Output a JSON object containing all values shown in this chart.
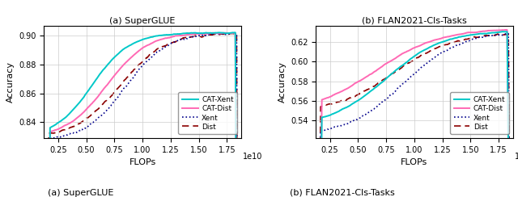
{
  "plot1": {
    "title": "(a) SuperGLUE",
    "ylabel": "Accuracy",
    "xlabel": "FLOPs",
    "xlim": [
      1250000000.0,
      18750000000.0
    ],
    "ylim": [
      0.829,
      0.907
    ],
    "yticks": [
      0.84,
      0.86,
      0.88,
      0.9
    ],
    "xticks": [
      2500000000.0,
      5000000000.0,
      7500000000.0,
      10000000000.0,
      12500000000.0,
      15000000000.0,
      17500000000.0
    ],
    "xticklabels": [
      "0.25",
      "0.50",
      "0.75",
      "1.00",
      "1.25",
      "1.50",
      "1.75"
    ],
    "cat_xent_color": "#00C8C8",
    "cat_dist_color": "#FF69B4",
    "xent_color": "#00008B",
    "dist_color": "#8B0000"
  },
  "plot2": {
    "title": "(b) FLAN2021-Cls-Tasks",
    "ylabel": "Accuracy",
    "xlabel": "FLOPs",
    "xlim": [
      1250000000.0,
      18750000000.0
    ],
    "ylim": [
      0.522,
      0.637
    ],
    "yticks": [
      0.54,
      0.56,
      0.58,
      0.6,
      0.62
    ],
    "xticks": [
      2500000000.0,
      5000000000.0,
      7500000000.0,
      10000000000.0,
      12500000000.0,
      15000000000.0,
      17500000000.0
    ],
    "xticklabels": [
      "0.25",
      "0.50",
      "0.75",
      "1.00",
      "1.25",
      "1.50",
      "1.75"
    ],
    "cat_xent_color": "#00C8C8",
    "cat_dist_color": "#FF69B4",
    "xent_color": "#00008B",
    "dist_color": "#8B0000"
  },
  "lw_solid": 1.4,
  "lw_dashed": 1.2
}
